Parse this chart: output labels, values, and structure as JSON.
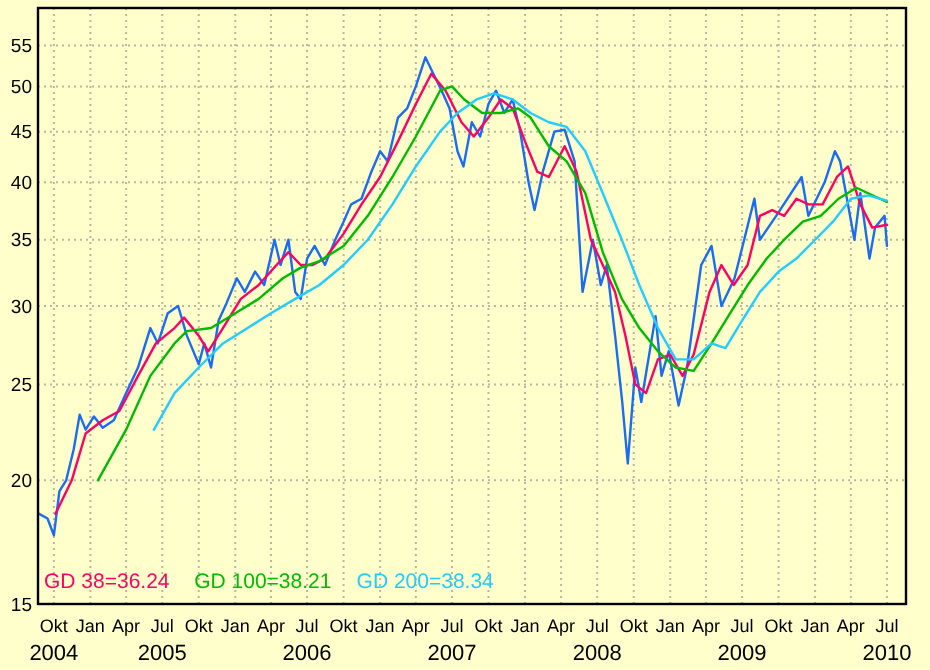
{
  "chart_data": {
    "type": "line",
    "log": true,
    "grid": true,
    "legend": "bottom left",
    "ylim": [
      15,
      60
    ],
    "yticks": [
      15,
      20,
      25,
      30,
      35,
      40,
      45,
      50,
      55
    ],
    "xlim": [
      "2004-08-22",
      "2010-08-18"
    ],
    "xticks": [
      {
        "value": "2004-10-01",
        "label": "Okt\n2004"
      },
      {
        "value": "2005-01-01",
        "label": "Jan"
      },
      {
        "value": "2005-04-01",
        "label": "Apr"
      },
      {
        "value": "2005-07-01",
        "label": "Jul\n2005"
      },
      {
        "value": "2005-10-01",
        "label": "Okt"
      },
      {
        "value": "2006-01-01",
        "label": "Jan"
      },
      {
        "value": "2006-04-01",
        "label": "Apr"
      },
      {
        "value": "2006-07-01",
        "label": "Jul\n2006"
      },
      {
        "value": "2006-10-01",
        "label": "Okt"
      },
      {
        "value": "2007-01-01",
        "label": "Jan"
      },
      {
        "value": "2007-04-01",
        "label": "Apr"
      },
      {
        "value": "2007-07-01",
        "label": "Jul\n2007"
      },
      {
        "value": "2007-10-01",
        "label": "Okt"
      },
      {
        "value": "2008-01-01",
        "label": "Jan"
      },
      {
        "value": "2008-04-01",
        "label": "Apr"
      },
      {
        "value": "2008-07-01",
        "label": "Jul\n2008"
      },
      {
        "value": "2008-10-01",
        "label": "Okt"
      },
      {
        "value": "2009-01-01",
        "label": "Jan"
      },
      {
        "value": "2009-04-01",
        "label": "Apr"
      },
      {
        "value": "2009-07-01",
        "label": "Jul\n2009"
      },
      {
        "value": "2009-10-01",
        "label": "Okt"
      },
      {
        "value": "2010-01-01",
        "label": "Jan"
      },
      {
        "value": "2010-04-01",
        "label": "Apr"
      },
      {
        "value": "2010-07-01",
        "label": "Jul\n2010"
      }
    ],
    "series": [
      {
        "color": "#1a6cf5",
        "x": [
          "2004-08-25",
          "2004-09-15",
          "2004-10-01",
          "2004-10-15",
          "2004-11-01",
          "2004-11-20",
          "2004-12-05",
          "2004-12-20",
          "2005-01-10",
          "2005-02-01",
          "2005-03-01",
          "2005-04-01",
          "2005-05-01",
          "2005-06-01",
          "2005-06-20",
          "2005-07-15",
          "2005-08-10",
          "2005-09-01",
          "2005-10-01",
          "2005-10-15",
          "2005-11-01",
          "2005-11-20",
          "2005-12-10",
          "2006-01-05",
          "2006-01-25",
          "2006-02-20",
          "2006-03-15",
          "2006-04-10",
          "2006-04-25",
          "2006-05-15",
          "2006-06-01",
          "2006-06-15",
          "2006-07-01",
          "2006-07-20",
          "2006-08-15",
          "2006-09-10",
          "2006-10-01",
          "2006-10-20",
          "2006-11-15",
          "2006-12-10",
          "2007-01-01",
          "2007-01-20",
          "2007-02-15",
          "2007-03-10",
          "2007-04-01",
          "2007-04-25",
          "2007-05-15",
          "2007-06-05",
          "2007-06-25",
          "2007-07-15",
          "2007-07-30",
          "2007-08-20",
          "2007-09-10",
          "2007-10-01",
          "2007-10-20",
          "2007-11-10",
          "2007-12-01",
          "2007-12-20",
          "2008-01-10",
          "2008-01-25",
          "2008-02-15",
          "2008-03-15",
          "2008-04-10",
          "2008-05-05",
          "2008-05-18",
          "2008-05-25",
          "2008-06-20",
          "2008-07-10",
          "2008-07-25",
          "2008-08-15",
          "2008-09-02",
          "2008-09-16",
          "2008-10-05",
          "2008-10-20",
          "2008-11-25",
          "2008-12-10",
          "2008-12-28",
          "2009-01-22",
          "2009-02-12",
          "2009-03-20",
          "2009-04-15",
          "2009-05-10",
          "2009-06-12",
          "2009-08-01",
          "2009-08-15",
          "2009-09-25",
          "2009-11-28",
          "2009-12-15",
          "2010-01-25",
          "2010-02-20",
          "2010-03-05",
          "2010-04-10",
          "2010-04-25",
          "2010-05-18",
          "2010-06-01",
          "2010-06-25",
          "2010-07-01"
        ],
        "values": [
          18.5,
          18.3,
          17.6,
          19.5,
          20,
          21.5,
          23.3,
          22.5,
          23.2,
          22.6,
          23,
          24.5,
          26,
          28.5,
          27.5,
          29.5,
          30,
          28,
          26.2,
          27.5,
          26,
          29,
          30.2,
          32,
          31,
          32.5,
          31.5,
          35,
          33,
          35,
          31,
          30.5,
          33.5,
          34.5,
          33,
          35,
          36.5,
          38,
          38.5,
          41,
          43,
          42,
          46.5,
          47.5,
          50,
          53.5,
          51.5,
          49.5,
          47.5,
          43,
          41.5,
          46,
          44.5,
          48,
          49.5,
          47,
          48.5,
          45,
          40,
          37.5,
          41,
          45,
          45.2,
          42,
          34.5,
          31,
          35,
          31.5,
          33,
          28,
          24,
          20.8,
          26,
          24,
          29.3,
          25.5,
          27,
          23.8,
          26,
          33,
          34.5,
          30,
          32,
          38.5,
          35,
          37,
          40.5,
          37,
          40,
          43,
          42,
          35,
          39,
          33.5,
          36,
          37,
          34.5
        ]
      },
      {
        "name": "GD 38=36.24",
        "color": "#ff0066",
        "x": [
          "2004-10-05",
          "2004-11-15",
          "2004-12-20",
          "2005-02-01",
          "2005-03-15",
          "2005-05-01",
          "2005-06-15",
          "2005-08-01",
          "2005-08-25",
          "2005-10-01",
          "2005-10-25",
          "2005-12-01",
          "2006-01-15",
          "2006-03-01",
          "2006-04-15",
          "2006-05-15",
          "2006-06-15",
          "2006-07-15",
          "2006-08-15",
          "2006-10-01",
          "2006-11-15",
          "2007-01-01",
          "2007-02-15",
          "2007-04-01",
          "2007-05-10",
          "2007-06-15",
          "2007-07-25",
          "2007-08-25",
          "2007-10-01",
          "2007-11-01",
          "2007-12-01",
          "2008-01-01",
          "2008-02-01",
          "2008-03-01",
          "2008-04-10",
          "2008-05-10",
          "2008-06-15",
          "2008-07-15",
          "2008-08-15",
          "2008-09-10",
          "2008-10-05",
          "2008-11-01",
          "2008-12-01",
          "2009-01-01",
          "2009-02-01",
          "2009-03-01",
          "2009-04-10",
          "2009-05-10",
          "2009-06-10",
          "2009-07-15",
          "2009-08-15",
          "2009-09-15",
          "2009-10-15",
          "2009-11-15",
          "2009-12-15",
          "2010-01-20",
          "2010-02-25",
          "2010-03-25",
          "2010-04-25",
          "2010-05-25",
          "2010-07-01"
        ],
        "values": [
          18.5,
          20,
          22.3,
          23,
          23.5,
          25.5,
          27.5,
          28.5,
          29.2,
          28,
          27,
          28.5,
          30.5,
          31.5,
          33,
          34,
          33,
          33,
          33.5,
          35.5,
          38,
          40.5,
          44,
          48,
          51.5,
          49.5,
          46,
          44.5,
          46.5,
          48.5,
          47.5,
          44,
          41,
          40.5,
          43.5,
          41,
          35,
          33,
          31,
          28,
          25,
          24.5,
          26.5,
          26.8,
          25.5,
          26.8,
          31,
          33,
          31.5,
          33,
          37,
          37.5,
          37,
          38.5,
          38,
          38,
          40.5,
          41.5,
          38,
          36,
          36.24
        ]
      },
      {
        "name": "GD 100=38.21",
        "color": "#00bb00",
        "x": [
          "2005-01-20",
          "2005-04-01",
          "2005-06-01",
          "2005-08-01",
          "2005-09-01",
          "2005-11-01",
          "2006-01-01",
          "2006-03-01",
          "2006-05-01",
          "2006-06-15",
          "2006-08-01",
          "2006-10-01",
          "2006-12-01",
          "2007-02-01",
          "2007-04-01",
          "2007-06-01",
          "2007-07-01",
          "2007-08-01",
          "2007-09-15",
          "2007-11-01",
          "2007-12-15",
          "2008-01-15",
          "2008-03-01",
          "2008-04-15",
          "2008-06-01",
          "2008-07-15",
          "2008-09-01",
          "2008-10-15",
          "2008-12-01",
          "2009-01-15",
          "2009-03-01",
          "2009-04-15",
          "2009-06-01",
          "2009-07-15",
          "2009-09-01",
          "2009-10-15",
          "2009-12-01",
          "2010-01-15",
          "2010-03-01",
          "2010-04-15",
          "2010-06-01",
          "2010-07-01"
        ],
        "values": [
          20,
          22.5,
          25.5,
          27.5,
          28.3,
          28.5,
          29.5,
          30.5,
          32,
          32.8,
          33.3,
          34.5,
          37,
          40.5,
          44.5,
          49.5,
          50,
          48.5,
          47,
          47,
          47.5,
          46.5,
          43.5,
          42,
          39,
          34,
          30.5,
          28.5,
          27,
          26,
          25.8,
          27.5,
          29.5,
          31.5,
          33.5,
          35,
          36.5,
          37,
          38.5,
          39.5,
          38.7,
          38.21
        ]
      },
      {
        "name": "GD 200=38.34",
        "color": "#22ccff",
        "x": [
          "2005-06-10",
          "2005-08-01",
          "2005-10-01",
          "2005-12-01",
          "2006-02-01",
          "2006-04-01",
          "2006-06-01",
          "2006-08-01",
          "2006-10-01",
          "2006-12-01",
          "2007-02-01",
          "2007-04-01",
          "2007-06-01",
          "2007-07-15",
          "2007-09-01",
          "2007-10-15",
          "2007-12-01",
          "2008-01-15",
          "2008-03-01",
          "2008-04-15",
          "2008-06-01",
          "2008-07-15",
          "2008-09-01",
          "2008-10-15",
          "2008-12-01",
          "2009-01-15",
          "2009-03-01",
          "2009-04-15",
          "2009-05-20",
          "2009-07-01",
          "2009-08-15",
          "2009-10-01",
          "2009-11-15",
          "2010-01-01",
          "2010-02-15",
          "2010-04-01",
          "2010-05-15",
          "2010-07-01"
        ],
        "values": [
          22.5,
          24.5,
          26,
          27.5,
          28.5,
          29.5,
          30.5,
          31.5,
          33,
          35,
          38,
          41.5,
          45,
          47,
          48.5,
          49.2,
          48.5,
          47,
          46,
          45.5,
          43,
          39,
          35,
          31.5,
          28.5,
          26.5,
          26.5,
          27.5,
          27.2,
          29,
          31,
          32.5,
          33.5,
          35,
          36.5,
          38.5,
          38.8,
          38.34
        ]
      }
    ]
  }
}
